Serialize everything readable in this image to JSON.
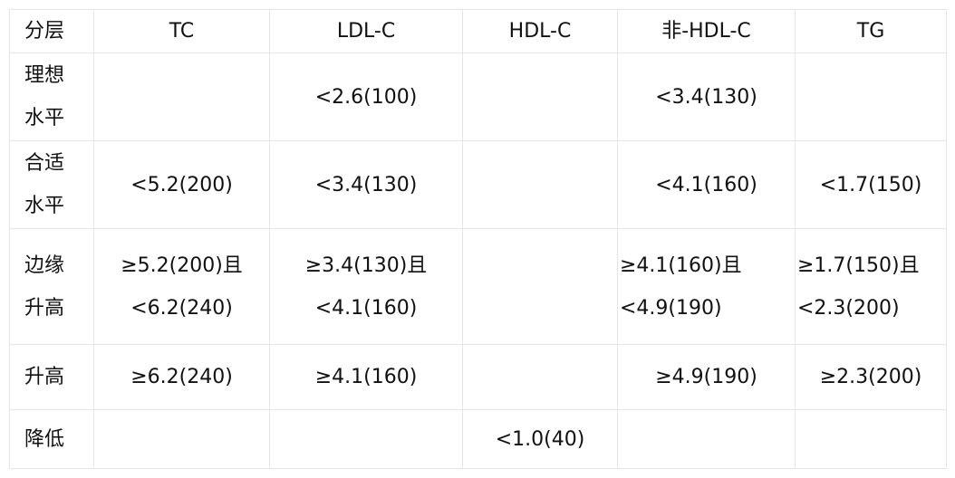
{
  "table": {
    "header": [
      "分层",
      "TC",
      "LDL-C",
      "HDL-C",
      "非-HDL-C",
      "TG"
    ],
    "rows": [
      [
        [
          "理想",
          "水平"
        ],
        [],
        [
          "<2.6(100)"
        ],
        [],
        [
          "<3.4(130)"
        ],
        []
      ],
      [
        [
          "合适",
          "水平"
        ],
        [
          "<5.2(200)"
        ],
        [
          "<3.4(130)"
        ],
        [],
        [
          "<4.1(160)"
        ],
        [
          "<1.7(150)"
        ]
      ],
      [
        [
          "边缘",
          "升高"
        ],
        [
          "≥5.2(200)且",
          "<6.2(240)"
        ],
        [
          "≥3.4(130)且",
          "<4.1(160)"
        ],
        [],
        [
          "≥4.1(160)且",
          "<4.9(190)"
        ],
        [
          "≥1.7(150)且",
          "<2.3(200)"
        ]
      ],
      [
        [
          "升高"
        ],
        [
          "≥6.2(240)"
        ],
        [
          "≥4.1(160)"
        ],
        [],
        [
          "≥4.9(190)"
        ],
        [
          "≥2.3(200)"
        ]
      ],
      [
        [
          "降低"
        ],
        [],
        [],
        [
          "<1.0(40)"
        ],
        [],
        []
      ]
    ]
  }
}
